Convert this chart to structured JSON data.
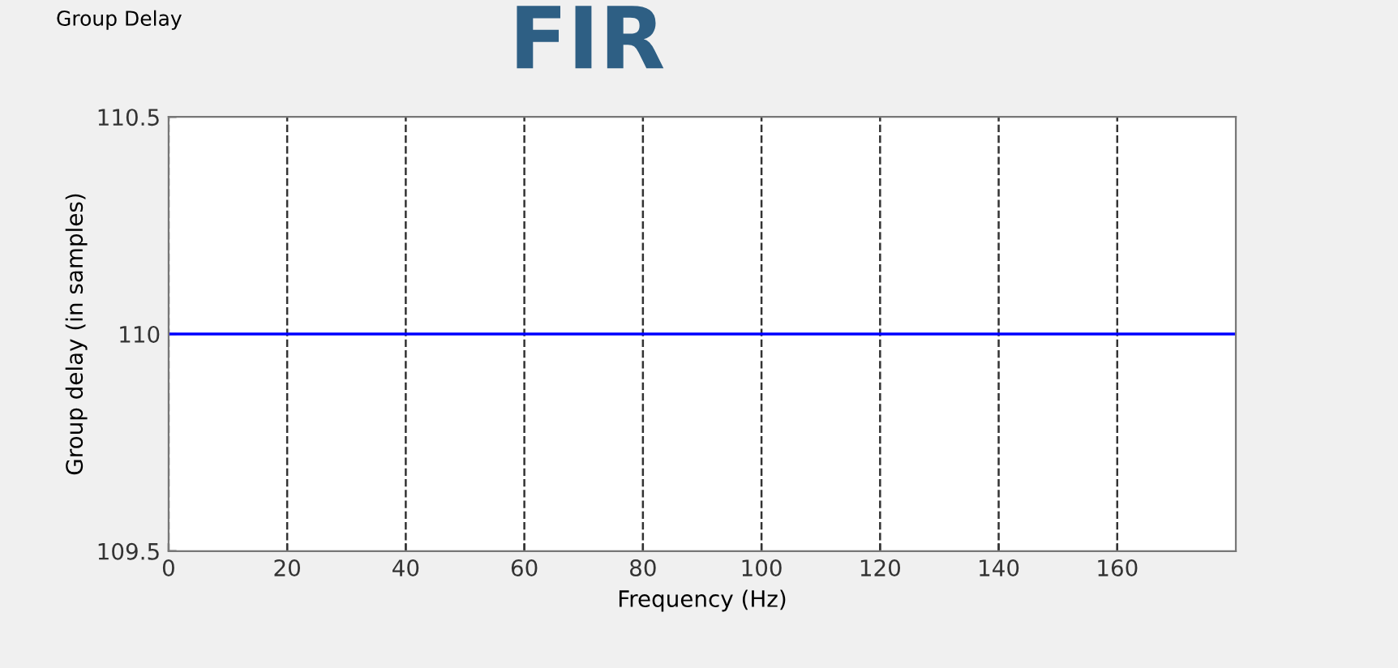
{
  "chart_data": {
    "type": "line",
    "title": "Group Delay",
    "xlabel": "Frequency (Hz)",
    "ylabel": "Group delay (in samples)",
    "annotations": [
      "FIR"
    ],
    "x": [
      0,
      180
    ],
    "series": [
      {
        "color": "#0000ff",
        "values": [
          110,
          110
        ]
      }
    ],
    "xlim": [
      0,
      180
    ],
    "xticks": [
      0,
      20,
      40,
      60,
      80,
      100,
      120,
      140,
      160
    ],
    "ylim": [
      109.5,
      110.5
    ],
    "yticks": [
      109.5,
      110,
      110.5
    ],
    "grid": "x",
    "line_style": "solid",
    "marker": "none"
  }
}
